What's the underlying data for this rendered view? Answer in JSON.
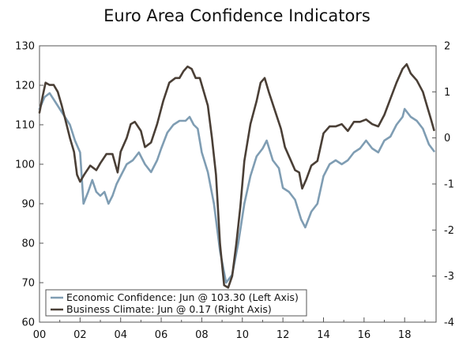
{
  "chart_data": {
    "type": "line",
    "title": "Euro Area Confidence Indicators",
    "xlabel": "",
    "ylabel": "",
    "y2label": "",
    "x_ticks": [
      "00",
      "02",
      "04",
      "06",
      "08",
      "10",
      "12",
      "14",
      "16",
      "18"
    ],
    "xlim": [
      2000,
      2019.55
    ],
    "ylim": [
      60,
      130
    ],
    "y2lim": [
      -4,
      2
    ],
    "y_ticks": [
      60,
      70,
      80,
      90,
      100,
      110,
      120,
      130
    ],
    "y2_ticks": [
      -4,
      -3,
      -2,
      -1,
      0,
      1,
      2
    ],
    "grid": false,
    "legend": "bottom-left",
    "series": [
      {
        "name": "Economic Confidence: Jun @ 103.30 (Left Axis)",
        "axis": "left",
        "color": "#7f9db3",
        "points": [
          [
            2000.0,
            114
          ],
          [
            2000.25,
            117
          ],
          [
            2000.5,
            118
          ],
          [
            2000.75,
            116
          ],
          [
            2001.0,
            114
          ],
          [
            2001.25,
            112
          ],
          [
            2001.5,
            110
          ],
          [
            2001.75,
            106
          ],
          [
            2002.0,
            103
          ],
          [
            2002.17,
            90
          ],
          [
            2002.4,
            93
          ],
          [
            2002.6,
            96
          ],
          [
            2002.8,
            93
          ],
          [
            2003.0,
            92
          ],
          [
            2003.2,
            93
          ],
          [
            2003.4,
            90
          ],
          [
            2003.6,
            92
          ],
          [
            2003.8,
            95
          ],
          [
            2004.0,
            97
          ],
          [
            2004.3,
            100
          ],
          [
            2004.6,
            101
          ],
          [
            2004.9,
            103
          ],
          [
            2005.2,
            100
          ],
          [
            2005.5,
            98
          ],
          [
            2005.8,
            101
          ],
          [
            2006.0,
            104
          ],
          [
            2006.3,
            108
          ],
          [
            2006.6,
            110
          ],
          [
            2006.9,
            111
          ],
          [
            2007.2,
            111
          ],
          [
            2007.4,
            112
          ],
          [
            2007.6,
            110
          ],
          [
            2007.8,
            109
          ],
          [
            2008.0,
            103
          ],
          [
            2008.3,
            98
          ],
          [
            2008.6,
            90
          ],
          [
            2008.9,
            78
          ],
          [
            2009.2,
            70
          ],
          [
            2009.5,
            72
          ],
          [
            2009.8,
            80
          ],
          [
            2010.1,
            90
          ],
          [
            2010.4,
            97
          ],
          [
            2010.7,
            102
          ],
          [
            2011.0,
            104
          ],
          [
            2011.2,
            106
          ],
          [
            2011.5,
            101
          ],
          [
            2011.8,
            99
          ],
          [
            2012.0,
            94
          ],
          [
            2012.3,
            93
          ],
          [
            2012.6,
            91
          ],
          [
            2012.9,
            86
          ],
          [
            2013.1,
            84
          ],
          [
            2013.4,
            88
          ],
          [
            2013.7,
            90
          ],
          [
            2014.0,
            97
          ],
          [
            2014.3,
            100
          ],
          [
            2014.6,
            101
          ],
          [
            2014.9,
            100
          ],
          [
            2015.2,
            101
          ],
          [
            2015.5,
            103
          ],
          [
            2015.8,
            104
          ],
          [
            2016.1,
            106
          ],
          [
            2016.4,
            104
          ],
          [
            2016.7,
            103
          ],
          [
            2017.0,
            106
          ],
          [
            2017.3,
            107
          ],
          [
            2017.6,
            110
          ],
          [
            2017.9,
            112
          ],
          [
            2018.0,
            114
          ],
          [
            2018.3,
            112
          ],
          [
            2018.6,
            111
          ],
          [
            2018.9,
            109
          ],
          [
            2019.2,
            105
          ],
          [
            2019.45,
            103.3
          ]
        ]
      },
      {
        "name": "Business Climate: Jun @ 0.17 (Right Axis)",
        "axis": "right",
        "color": "#4a3f36",
        "points": [
          [
            2000.0,
            0.55
          ],
          [
            2000.15,
            0.9
          ],
          [
            2000.3,
            1.2
          ],
          [
            2000.5,
            1.15
          ],
          [
            2000.7,
            1.15
          ],
          [
            2000.9,
            1.0
          ],
          [
            2001.1,
            0.7
          ],
          [
            2001.3,
            0.35
          ],
          [
            2001.5,
            0.0
          ],
          [
            2001.7,
            -0.3
          ],
          [
            2001.85,
            -0.8
          ],
          [
            2002.0,
            -0.95
          ],
          [
            2002.2,
            -0.8
          ],
          [
            2002.5,
            -0.6
          ],
          [
            2002.8,
            -0.7
          ],
          [
            2003.0,
            -0.55
          ],
          [
            2003.3,
            -0.35
          ],
          [
            2003.6,
            -0.35
          ],
          [
            2003.85,
            -0.75
          ],
          [
            2004.0,
            -0.3
          ],
          [
            2004.3,
            0.0
          ],
          [
            2004.5,
            0.3
          ],
          [
            2004.7,
            0.35
          ],
          [
            2005.0,
            0.15
          ],
          [
            2005.2,
            -0.2
          ],
          [
            2005.5,
            -0.1
          ],
          [
            2005.8,
            0.3
          ],
          [
            2006.1,
            0.8
          ],
          [
            2006.4,
            1.2
          ],
          [
            2006.7,
            1.3
          ],
          [
            2006.9,
            1.3
          ],
          [
            2007.1,
            1.45
          ],
          [
            2007.3,
            1.55
          ],
          [
            2007.5,
            1.5
          ],
          [
            2007.7,
            1.3
          ],
          [
            2007.9,
            1.3
          ],
          [
            2008.1,
            1.0
          ],
          [
            2008.3,
            0.7
          ],
          [
            2008.5,
            0.0
          ],
          [
            2008.7,
            -0.8
          ],
          [
            2008.9,
            -2.3
          ],
          [
            2009.1,
            -3.2
          ],
          [
            2009.3,
            -3.25
          ],
          [
            2009.5,
            -3.0
          ],
          [
            2009.7,
            -2.3
          ],
          [
            2009.9,
            -1.5
          ],
          [
            2010.1,
            -0.5
          ],
          [
            2010.4,
            0.3
          ],
          [
            2010.7,
            0.8
          ],
          [
            2010.9,
            1.2
          ],
          [
            2011.1,
            1.3
          ],
          [
            2011.3,
            1.0
          ],
          [
            2011.6,
            0.6
          ],
          [
            2011.9,
            0.2
          ],
          [
            2012.1,
            -0.2
          ],
          [
            2012.4,
            -0.5
          ],
          [
            2012.6,
            -0.7
          ],
          [
            2012.8,
            -0.75
          ],
          [
            2012.95,
            -1.1
          ],
          [
            2013.15,
            -0.9
          ],
          [
            2013.4,
            -0.6
          ],
          [
            2013.7,
            -0.5
          ],
          [
            2014.0,
            0.1
          ],
          [
            2014.3,
            0.25
          ],
          [
            2014.6,
            0.25
          ],
          [
            2014.9,
            0.3
          ],
          [
            2015.2,
            0.15
          ],
          [
            2015.5,
            0.35
          ],
          [
            2015.8,
            0.35
          ],
          [
            2016.1,
            0.4
          ],
          [
            2016.4,
            0.3
          ],
          [
            2016.7,
            0.25
          ],
          [
            2017.0,
            0.5
          ],
          [
            2017.3,
            0.85
          ],
          [
            2017.6,
            1.2
          ],
          [
            2017.9,
            1.5
          ],
          [
            2018.1,
            1.6
          ],
          [
            2018.3,
            1.4
          ],
          [
            2018.6,
            1.25
          ],
          [
            2018.9,
            1.0
          ],
          [
            2019.1,
            0.7
          ],
          [
            2019.3,
            0.4
          ],
          [
            2019.45,
            0.17
          ]
        ]
      }
    ]
  }
}
